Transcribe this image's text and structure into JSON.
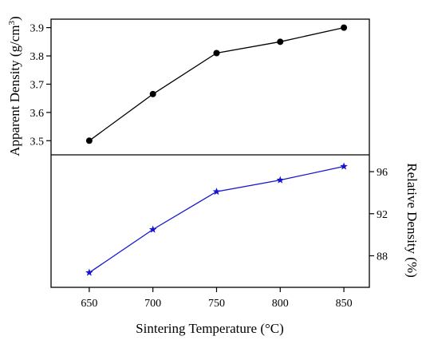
{
  "chart_data": {
    "type": "line",
    "x": [
      650,
      700,
      750,
      800,
      850
    ],
    "xlabel": "Sintering Temperature (°C)",
    "x_ticks": [
      "650",
      "700",
      "750",
      "800",
      "850"
    ],
    "xlim": [
      620,
      870
    ],
    "panels": [
      {
        "name": "top",
        "ylabel": "Apparent Density (g/cm",
        "ylabel_sup": "3",
        "ylabel_end": ")",
        "y_ticks": [
          "3.5",
          "3.6",
          "3.7",
          "3.8",
          "3.9"
        ],
        "ylim": [
          3.45,
          3.93
        ],
        "axis_side": "left",
        "series": [
          {
            "values": [
              3.5,
              3.665,
              3.81,
              3.85,
              3.9
            ],
            "color": "#000000",
            "marker": "circle"
          }
        ]
      },
      {
        "name": "bottom",
        "ylabel": "Relative Density (%)",
        "y_ticks": [
          "88",
          "92",
          "96"
        ],
        "ylim": [
          85.0,
          97.6
        ],
        "axis_side": "right",
        "series": [
          {
            "values": [
              86.4,
              90.5,
              94.1,
              95.2,
              96.5
            ],
            "color": "#1414d2",
            "marker": "star"
          }
        ]
      }
    ]
  }
}
